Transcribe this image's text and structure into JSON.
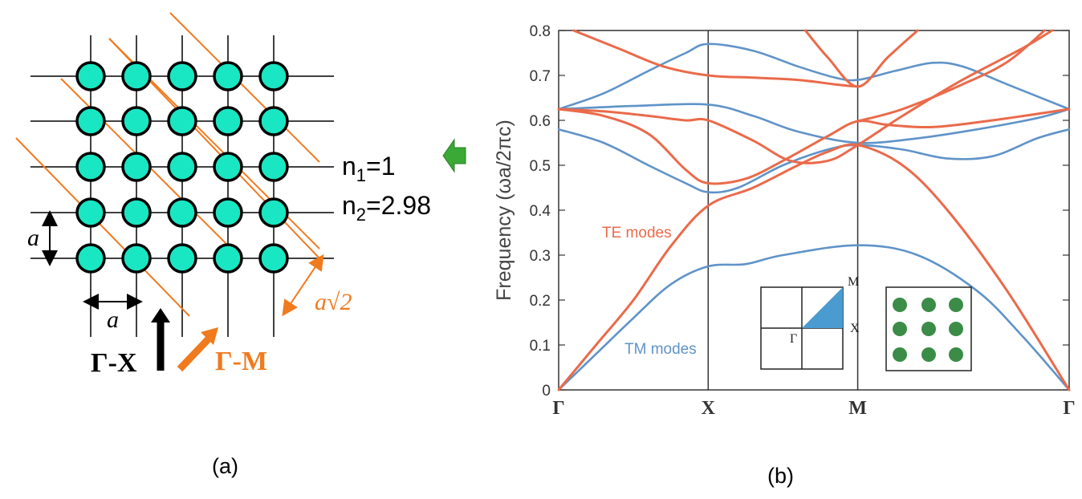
{
  "panel_a": {
    "caption": "(a)",
    "lattice_label": "a",
    "diag_label": "a√2",
    "n1": "n",
    "n1_sub": "1",
    "n1_value": "=1",
    "n2": "n",
    "n2_sub": "2",
    "n2_value": "=2.98",
    "gamma_x": "Γ-X",
    "gamma_m": "Γ-M",
    "rod_color": "#19e6c3",
    "line_color": "#f07a1e",
    "arrow_color": "#3aa935"
  },
  "panel_b": {
    "caption": "(b)",
    "te_label": "TE modes",
    "tm_label": "TM modes",
    "inset_bz": {
      "m": "M",
      "x": "X",
      "gamma": "Γ"
    },
    "te_color": "#ea6a4a",
    "tm_color": "#5f93c8",
    "inset_rod_color": "#3b8c46"
  },
  "chart_data": {
    "type": "line",
    "ylabel": "Frequency (ωa/2πc)",
    "ylim": [
      0,
      0.8
    ],
    "yticks": [
      "0",
      "0.1",
      "0.2",
      "0.3",
      "0.4",
      "0.5",
      "0.6",
      "0.7",
      "0.8"
    ],
    "xticks": [
      "Γ",
      "X",
      "M",
      "Γ"
    ],
    "x_positions": [
      0,
      1,
      2,
      3.414
    ],
    "series": [
      {
        "name": "TM modes",
        "color": "#5f93c8",
        "points": [
          [
            0,
            0
          ],
          [
            0.25,
            0.08
          ],
          [
            0.5,
            0.16
          ],
          [
            0.75,
            0.235
          ],
          [
            1,
            0.275
          ],
          [
            1.25,
            0.28
          ],
          [
            1.5,
            0.3
          ],
          [
            2,
            0.322
          ],
          [
            2.4,
            0.3
          ],
          [
            2.8,
            0.22
          ],
          [
            3.1,
            0.12
          ],
          [
            3.414,
            0
          ]
        ]
      },
      {
        "name": "TM modes",
        "color": "#5f93c8",
        "points": [
          [
            0,
            0.58
          ],
          [
            0.3,
            0.55
          ],
          [
            0.6,
            0.5
          ],
          [
            0.85,
            0.46
          ],
          [
            1,
            0.44
          ],
          [
            1.2,
            0.45
          ],
          [
            1.5,
            0.5
          ],
          [
            1.8,
            0.535
          ],
          [
            2,
            0.545
          ],
          [
            2.3,
            0.535
          ],
          [
            2.6,
            0.515
          ],
          [
            2.9,
            0.52
          ],
          [
            3.2,
            0.56
          ],
          [
            3.414,
            0.58
          ]
        ]
      },
      {
        "name": "TM modes",
        "color": "#5f93c8",
        "points": [
          [
            0,
            0.625
          ],
          [
            0.5,
            0.632
          ],
          [
            1,
            0.635
          ],
          [
            1.3,
            0.61
          ],
          [
            1.6,
            0.575
          ],
          [
            2,
            0.55
          ],
          [
            2.4,
            0.56
          ],
          [
            2.8,
            0.58
          ],
          [
            3.2,
            0.605
          ],
          [
            3.414,
            0.625
          ]
        ]
      },
      {
        "name": "TM modes",
        "color": "#5f93c8",
        "points": [
          [
            0,
            0.625
          ],
          [
            0.3,
            0.66
          ],
          [
            0.6,
            0.71
          ],
          [
            0.85,
            0.75
          ],
          [
            1,
            0.77
          ],
          [
            1.3,
            0.755
          ],
          [
            1.6,
            0.72
          ],
          [
            1.85,
            0.695
          ],
          [
            2,
            0.69
          ],
          [
            2.25,
            0.71
          ],
          [
            2.5,
            0.728
          ],
          [
            2.7,
            0.72
          ],
          [
            3,
            0.68
          ],
          [
            3.414,
            0.625
          ]
        ]
      },
      {
        "name": "TE modes",
        "color": "#ea6a4a",
        "points": [
          [
            0,
            0
          ],
          [
            0.25,
            0.1
          ],
          [
            0.5,
            0.2
          ],
          [
            0.75,
            0.32
          ],
          [
            1,
            0.41
          ],
          [
            1.3,
            0.45
          ],
          [
            1.6,
            0.5
          ],
          [
            1.8,
            0.53
          ],
          [
            2,
            0.545
          ],
          [
            2.3,
            0.5
          ],
          [
            2.6,
            0.4
          ],
          [
            3,
            0.22
          ],
          [
            3.414,
            0
          ]
        ]
      },
      {
        "name": "TE modes",
        "color": "#ea6a4a",
        "points": [
          [
            0,
            0.625
          ],
          [
            0.3,
            0.61
          ],
          [
            0.6,
            0.57
          ],
          [
            0.85,
            0.49
          ],
          [
            1,
            0.46
          ],
          [
            1.25,
            0.47
          ],
          [
            1.5,
            0.51
          ],
          [
            1.8,
            0.565
          ],
          [
            2,
            0.598
          ],
          [
            2.2,
            0.59
          ],
          [
            2.5,
            0.585
          ],
          [
            2.9,
            0.6
          ],
          [
            3.414,
            0.625
          ]
        ]
      },
      {
        "name": "TE modes",
        "color": "#ea6a4a",
        "points": [
          [
            0,
            0.625
          ],
          [
            0.3,
            0.62
          ],
          [
            0.6,
            0.61
          ],
          [
            0.85,
            0.6
          ],
          [
            1,
            0.6
          ],
          [
            1.3,
            0.555
          ],
          [
            1.55,
            0.51
          ],
          [
            1.8,
            0.51
          ],
          [
            2,
            0.545
          ],
          [
            2.3,
            0.61
          ],
          [
            2.7,
            0.69
          ],
          [
            3.1,
            0.76
          ],
          [
            3.3,
            0.8
          ]
        ]
      },
      {
        "name": "TE modes",
        "color": "#ea6a4a",
        "points": [
          [
            0.1,
            0.8
          ],
          [
            0.4,
            0.76
          ],
          [
            0.7,
            0.72
          ],
          [
            1,
            0.7
          ],
          [
            1.3,
            0.695
          ],
          [
            1.6,
            0.69
          ],
          [
            1.85,
            0.68
          ],
          [
            2,
            0.675
          ]
        ]
      },
      {
        "name": "TE modes",
        "color": "#ea6a4a",
        "points": [
          [
            1.65,
            0.8
          ],
          [
            1.8,
            0.74
          ],
          [
            2,
            0.675
          ],
          [
            2.2,
            0.74
          ],
          [
            2.4,
            0.8
          ]
        ]
      },
      {
        "name": "TE modes",
        "color": "#ea6a4a",
        "points": [
          [
            2,
            0.598
          ],
          [
            2.3,
            0.625
          ],
          [
            2.7,
            0.68
          ],
          [
            3,
            0.73
          ],
          [
            3.25,
            0.8
          ]
        ]
      }
    ]
  }
}
